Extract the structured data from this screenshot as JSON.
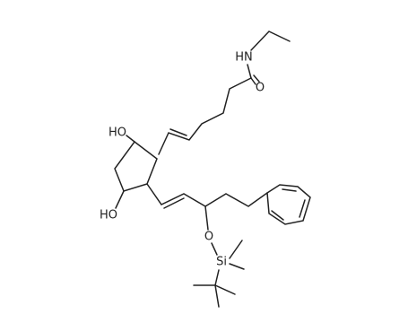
{
  "atoms": [
    {
      "label": "HN"
    },
    {
      "label": "O"
    },
    {
      "label": "HO"
    },
    {
      "label": "HO"
    },
    {
      "label": "O"
    },
    {
      "label": "Si"
    }
  ]
}
